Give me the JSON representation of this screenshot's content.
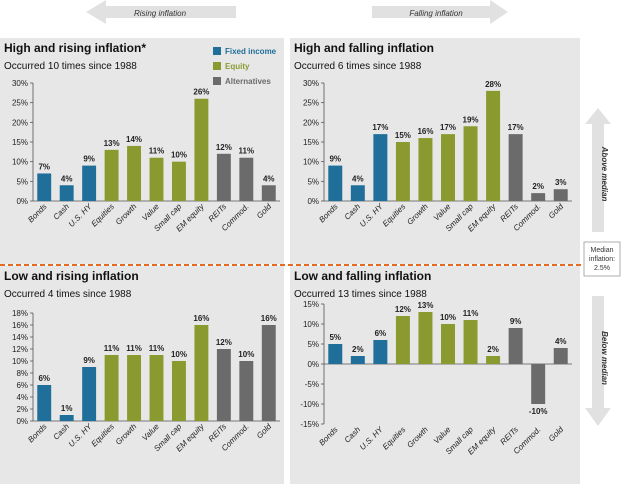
{
  "header": {
    "rising_label": "Rising inflation",
    "falling_label": "Falling inflation"
  },
  "legend": [
    {
      "label": "Fixed income",
      "color": "#1f6f9a"
    },
    {
      "label": "Equity",
      "color": "#8a9a2e"
    },
    {
      "label": "Alternatives",
      "color": "#6b6b6b"
    }
  ],
  "side": {
    "above": "Above median",
    "below": "Below median",
    "median": [
      "Median",
      "inflation:",
      "2.5%"
    ]
  },
  "colors": {
    "fixed_income": "#1f6f9a",
    "equity": "#8a9a2e",
    "alternatives": "#6b6b6b",
    "panel_bg": "#e7e7e7",
    "divider": "#e66a1f"
  },
  "categories": [
    "Bonds",
    "Cash",
    "U.S. HY",
    "Equities",
    "Growth",
    "Value",
    "Small cap",
    "EM equity",
    "REITs",
    "Commod.",
    "Gold"
  ],
  "category_groups": [
    "fixed_income",
    "fixed_income",
    "fixed_income",
    "equity",
    "equity",
    "equity",
    "equity",
    "equity",
    "alternatives",
    "alternatives",
    "alternatives"
  ],
  "chart_data": [
    {
      "type": "bar",
      "title": "High and rising inflation*",
      "subtitle": "Occurred 10 times since 1988",
      "categories": [
        "Bonds",
        "Cash",
        "U.S. HY",
        "Equities",
        "Growth",
        "Value",
        "Small cap",
        "EM equity",
        "REITs",
        "Commod.",
        "Gold"
      ],
      "values": [
        7,
        4,
        9,
        13,
        14,
        11,
        10,
        26,
        12,
        11,
        4
      ],
      "labels": [
        "7%",
        "4%",
        "9%",
        "13%",
        "14%",
        "11%",
        "10%",
        "26%",
        "12%",
        "11%",
        "4%"
      ],
      "ylim": [
        0,
        30
      ],
      "yticks": [
        0,
        5,
        10,
        15,
        20,
        25,
        30
      ],
      "ytick_labels": [
        "0%",
        "5%",
        "10%",
        "15%",
        "20%",
        "25%",
        "30%"
      ]
    },
    {
      "type": "bar",
      "title": "High and falling inflation",
      "subtitle": "Occurred 6 times since 1988",
      "categories": [
        "Bonds",
        "Cash",
        "U.S. HY",
        "Equities",
        "Growth",
        "Value",
        "Small cap",
        "EM equity",
        "REITs",
        "Commod.",
        "Gold"
      ],
      "values": [
        9,
        4,
        17,
        15,
        16,
        17,
        19,
        28,
        17,
        2,
        3
      ],
      "labels": [
        "9%",
        "4%",
        "17%",
        "15%",
        "16%",
        "17%",
        "19%",
        "28%",
        "17%",
        "2%",
        "3%"
      ],
      "ylim": [
        0,
        30
      ],
      "yticks": [
        0,
        5,
        10,
        15,
        20,
        25,
        30
      ],
      "ytick_labels": [
        "0%",
        "5%",
        "10%",
        "15%",
        "20%",
        "25%",
        "30%"
      ]
    },
    {
      "type": "bar",
      "title": "Low and rising inflation",
      "subtitle": "Occurred 4 times since 1988",
      "categories": [
        "Bonds",
        "Cash",
        "U.S. HY",
        "Equities",
        "Growth",
        "Value",
        "Small cap",
        "EM equity",
        "REITs",
        "Commod.",
        "Gold"
      ],
      "values": [
        6,
        1,
        9,
        11,
        11,
        11,
        10,
        16,
        12,
        10,
        16
      ],
      "labels": [
        "6%",
        "1%",
        "9%",
        "11%",
        "11%",
        "11%",
        "10%",
        "16%",
        "12%",
        "10%",
        "16%"
      ],
      "ylim": [
        0,
        18
      ],
      "yticks": [
        0,
        2,
        4,
        6,
        8,
        10,
        12,
        14,
        16,
        18
      ],
      "ytick_labels": [
        "0%",
        "2%",
        "4%",
        "6%",
        "8%",
        "10%",
        "12%",
        "14%",
        "16%",
        "18%"
      ]
    },
    {
      "type": "bar",
      "title": "Low and falling inflation",
      "subtitle": "Occurred 13 times since 1988",
      "categories": [
        "Bonds",
        "Cash",
        "U.S. HY",
        "Equities",
        "Growth",
        "Value",
        "Small cap",
        "EM equity",
        "REITs",
        "Commod.",
        "Gold"
      ],
      "values": [
        5,
        2,
        6,
        12,
        13,
        10,
        11,
        2,
        9,
        -10,
        4
      ],
      "labels": [
        "5%",
        "2%",
        "6%",
        "12%",
        "13%",
        "10%",
        "11%",
        "2%",
        "9%",
        "-10%",
        "4%"
      ],
      "ylim": [
        -15,
        15
      ],
      "yticks": [
        -15,
        -10,
        -5,
        0,
        5,
        10,
        15
      ],
      "ytick_labels": [
        "-15%",
        "-10%",
        "-5%",
        "0%",
        "5%",
        "10%",
        "15%"
      ]
    }
  ]
}
